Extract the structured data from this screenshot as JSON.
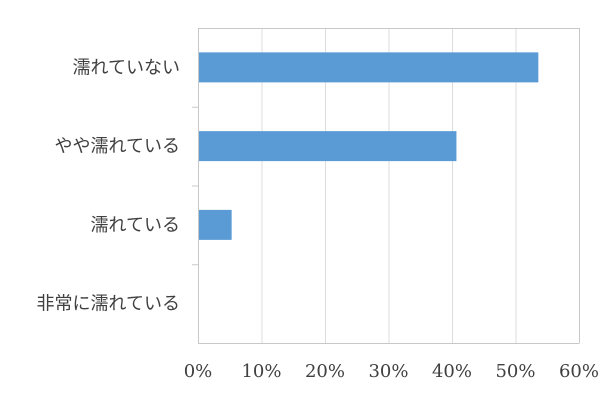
{
  "chart_data": {
    "type": "bar",
    "orientation": "horizontal",
    "categories": [
      "濡れていない",
      "やや濡れている",
      "濡れている",
      "非常に濡れている"
    ],
    "values": [
      53.6,
      40.7,
      5.3,
      0
    ],
    "xlim": [
      0,
      60
    ],
    "x_ticks": [
      "0%",
      "10%",
      "20%",
      "30%",
      "40%",
      "50%",
      "60%"
    ],
    "x_tick_values": [
      0,
      10,
      20,
      30,
      40,
      50,
      60
    ],
    "title": "",
    "xlabel": "",
    "ylabel": "",
    "grid": "vertical",
    "legend": "none",
    "bar_color": "#5b9bd5",
    "unit": "%"
  }
}
